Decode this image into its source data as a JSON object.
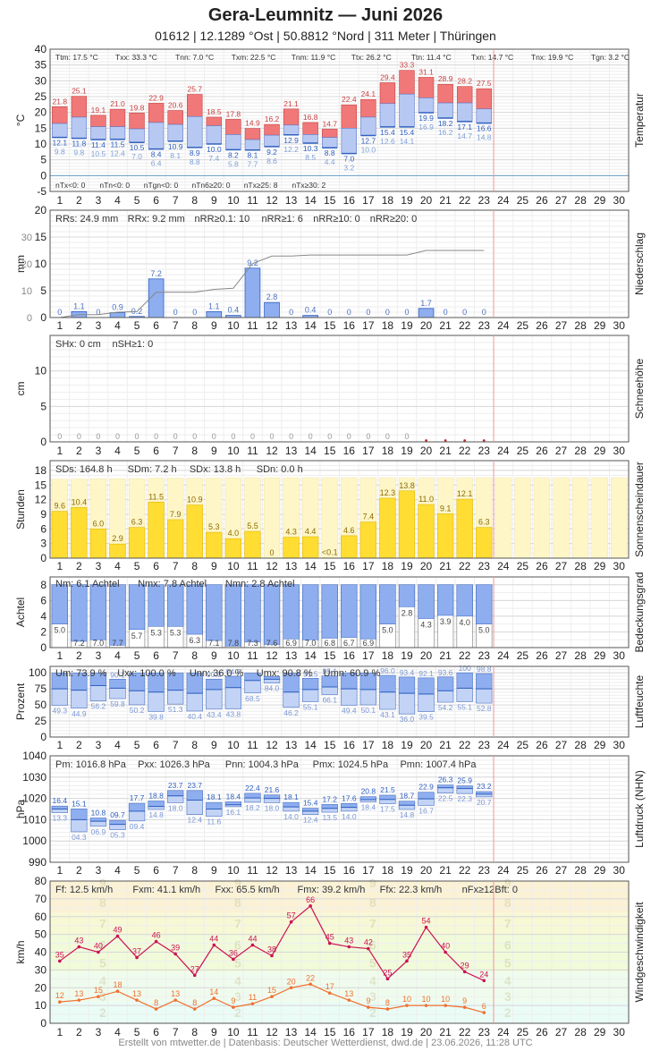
{
  "header": {
    "title": "Gera-Leumnitz  —  Juni 2026",
    "subtitle": "01612  |  12.1289 °Ost  |  50.8812 °Nord  |  311 Meter  |  Thüringen"
  },
  "footer": "Erstellt von mtwetter.de | Datenbasis: Deutscher Wetterdienst, dwd.de | 23.06.2026, 11:28 UTC",
  "days": [
    "1",
    "2",
    "3",
    "4",
    "5",
    "6",
    "7",
    "8",
    "9",
    "10",
    "11",
    "12",
    "13",
    "14",
    "15",
    "16",
    "17",
    "18",
    "19",
    "20",
    "21",
    "22",
    "23",
    "24",
    "25",
    "26",
    "27",
    "28",
    "29",
    "30"
  ],
  "colors": {
    "tmax_bar": "#f07878",
    "tmax_bar_border": "#c84040",
    "tmin_bar": "#b7c9f2",
    "tmin_bar_border": "#5a78c8",
    "precip_bar": "#8eaef0",
    "sunshine_bar": "#ffdd33",
    "sunshine_bg": "#fff6c8",
    "cloud_bar": "#8eaef0",
    "gust_line": "#cc1155",
    "wind_line": "#f07030",
    "today_line": "#ee9999"
  },
  "chart_data": [
    {
      "type": "bar",
      "name": "temperature",
      "ylabel": "°C",
      "right_label": "Temperatur",
      "ylim": [
        -5,
        40
      ],
      "yticks": [
        "-5",
        "0",
        "5",
        "10",
        "15",
        "20",
        "25",
        "30",
        "35",
        "40"
      ],
      "grid": true,
      "stats_top": [
        "Ttm: 17.5 °C",
        "Txx: 33.3 °C",
        "Tnn: 7.0 °C",
        "Txm: 22.5 °C",
        "Tnm: 11.9 °C",
        "Ttx: 26.2 °C",
        "Ttn: 11.4 °C",
        "Txn: 14.7 °C",
        "Tnx: 19.9 °C",
        "Tgn: 3.2 °C"
      ],
      "stats_bottom": [
        "nTx<0: 0",
        "nTn<0: 0",
        "nTgn<0: 0",
        "nTn6≥20: 0",
        "nTx≥25: 8",
        "nTx≥30: 2"
      ],
      "tmax": [
        21.8,
        25.1,
        19.1,
        21.0,
        19.8,
        22.9,
        20.6,
        25.7,
        18.5,
        17.8,
        14.9,
        16.2,
        21.1,
        16.8,
        14.7,
        22.4,
        24.1,
        29.4,
        33.3,
        31.1,
        28.9,
        28.2,
        27.5
      ],
      "tmean": [
        16.5,
        18.5,
        15.5,
        15.5,
        14.8,
        16.8,
        16.2,
        18.7,
        15.8,
        13.0,
        11.4,
        12.8,
        16.0,
        13.0,
        12.1,
        15.0,
        18.5,
        22.8,
        25.8,
        24.6,
        23.0,
        23.0,
        21.1
      ],
      "tmin": [
        12.1,
        11.8,
        11.4,
        11.5,
        10.5,
        8.4,
        10.9,
        8.9,
        10.0,
        8.2,
        8.1,
        9.2,
        12.9,
        10.3,
        8.8,
        7.0,
        12.7,
        15.4,
        15.4,
        19.9,
        18.2,
        17.1,
        16.6
      ],
      "tground": [
        9.8,
        9.8,
        10.5,
        12.4,
        7.0,
        6.4,
        8.1,
        8.8,
        7.4,
        5.8,
        7.7,
        8.6,
        12.2,
        8.5,
        4.4,
        3.2,
        10.0,
        12.6,
        14.1,
        16.9,
        16.2,
        14.7,
        14.8
      ]
    },
    {
      "type": "bar",
      "name": "precipitation",
      "ylabel": "mm",
      "right_label": "Niederschlag",
      "ylim": [
        0,
        20
      ],
      "yticks": [
        "0",
        "5",
        "10",
        "15",
        "20"
      ],
      "y2ticks": [
        "0",
        "10",
        "20",
        "30"
      ],
      "stats": [
        "RRs: 24.9 mm",
        "RRx: 9.2 mm",
        "nRR≥0.1: 10",
        "nRR≥1: 6",
        "nRR≥10: 0",
        "nRR≥20: 0"
      ],
      "values": [
        0,
        1.1,
        0,
        0.9,
        0.2,
        7.2,
        0,
        0,
        1.1,
        0.4,
        9.2,
        2.8,
        0,
        0.4,
        0,
        0,
        0,
        0,
        0,
        1.7,
        0,
        0,
        0
      ],
      "labels": [
        "0",
        "1.1",
        "0",
        "0.9",
        "0.2",
        "7.2",
        "0",
        "0",
        "1.1",
        "0.4",
        "9.2",
        "2.8",
        "0",
        "0.4",
        "0",
        "0",
        "0",
        "0",
        "0",
        "1.7",
        "0",
        "0",
        "0"
      ],
      "cumulative": [
        0,
        1.1,
        1.1,
        2.0,
        2.2,
        9.4,
        9.4,
        9.4,
        10.5,
        10.9,
        20.1,
        22.9,
        22.9,
        23.3,
        23.3,
        23.3,
        23.3,
        23.3,
        23.3,
        25.0,
        25.0,
        25.0,
        25.0
      ]
    },
    {
      "type": "bar",
      "name": "snow",
      "ylabel": "cm",
      "right_label": "Schneehöhe",
      "ylim": [
        0,
        15
      ],
      "yticks": [
        "0",
        "5",
        "10"
      ],
      "stats": [
        "SHx: 0 cm",
        "nSH≥1: 0"
      ],
      "values": [
        0,
        0,
        0,
        0,
        0,
        0,
        0,
        0,
        0,
        0,
        0,
        0,
        0,
        0,
        0,
        0,
        0,
        0,
        0
      ],
      "labels": [
        "0",
        "0",
        "0",
        "0",
        "0",
        "0",
        "0",
        "0",
        "0",
        "0",
        "0",
        "0",
        "0",
        "0",
        "0",
        "0",
        "0",
        "0",
        "0"
      ],
      "missing_days": [
        20,
        21,
        22,
        23
      ]
    },
    {
      "type": "bar",
      "name": "sunshine",
      "ylabel": "Stunden",
      "right_label": "Sonnenscheindauer",
      "ylim": [
        0,
        20
      ],
      "yticks": [
        "0",
        "3",
        "6",
        "9",
        "12",
        "15",
        "18"
      ],
      "stats": [
        "SDs: 164.8 h",
        "SDm: 7.2 h",
        "SDx: 13.8 h",
        "SDn: 0.0 h"
      ],
      "possible": [
        16.2,
        16.2,
        16.3,
        16.3,
        16.3,
        16.4,
        16.4,
        16.4,
        16.4,
        16.5,
        16.5,
        16.5,
        16.5,
        16.5,
        16.5,
        16.5,
        16.5,
        16.5,
        16.5,
        16.5,
        16.5,
        16.5,
        16.5,
        16.5,
        16.5,
        16.5,
        16.5,
        16.5,
        16.5,
        16.5
      ],
      "values": [
        9.6,
        10.4,
        6.0,
        2.9,
        6.3,
        11.5,
        7.9,
        10.9,
        5.3,
        4.0,
        5.5,
        0,
        4.3,
        4.4,
        0.05,
        4.6,
        7.4,
        12.3,
        13.8,
        11.0,
        9.1,
        12.1,
        6.3
      ],
      "labels": [
        "9.6",
        "10.4",
        "6.0",
        "2.9",
        "6.3",
        "11.5",
        "7.9",
        "10.9",
        "5.3",
        "4.0",
        "5.5",
        "0",
        "4.3",
        "4.4",
        "<0.1",
        "4.6",
        "7.4",
        "12.3",
        "13.8",
        "11.0",
        "9.1",
        "12.1",
        "6.3"
      ]
    },
    {
      "type": "bar",
      "name": "cloud_cover",
      "ylabel": "Achtel",
      "right_label": "Bedeckungsgrad",
      "ylim": [
        0,
        9
      ],
      "yticks": [
        "0",
        "2",
        "4",
        "6",
        "8"
      ],
      "stats": [
        "Nm: 6.1 Achtel",
        "Nmx: 7.8 Achtel",
        "Nmn: 2.8 Achtel"
      ],
      "values": [
        5.0,
        7.2,
        7.0,
        7.7,
        5.7,
        5.3,
        5.3,
        6.3,
        7.1,
        7.8,
        7.3,
        7.6,
        6.9,
        7.0,
        6.8,
        6.7,
        6.9,
        5.0,
        2.8,
        4.3,
        3.9,
        4.0,
        5.0
      ]
    },
    {
      "type": "bar",
      "name": "humidity",
      "ylabel": "Prozent",
      "right_label": "Luftfeuchte",
      "ylim": [
        0,
        110
      ],
      "yticks": [
        "0",
        "25",
        "50",
        "75",
        "100"
      ],
      "stats": [
        "Um: 73.9 %",
        "Uxx: 100.0 %",
        "Unn: 36.0 %",
        "Umx: 90.8 %",
        "Umn: 60.9 %"
      ],
      "max": [
        99.5,
        99.5,
        99.5,
        90.1,
        99.5,
        99.5,
        99.5,
        99.5,
        90.2,
        94.7,
        99.5,
        94.5,
        99.5,
        91.5,
        95.1,
        99.5,
        99.5,
        96.0,
        93.4,
        92.1,
        93.6,
        100,
        98.8
      ],
      "max_labels": [
        "",
        "",
        "",
        "90.1",
        "",
        "",
        "",
        "",
        "90.2",
        "94.7",
        "",
        "",
        "",
        "91.5",
        "95.1",
        "",
        "",
        "96.0",
        "93.4",
        "92.1",
        "93.6",
        "100",
        "98.8"
      ],
      "mean": [
        75,
        73,
        80,
        76,
        72,
        70,
        73,
        68,
        74,
        77,
        88,
        90,
        70,
        74,
        78,
        75,
        74,
        70,
        68,
        67,
        72,
        76,
        75
      ],
      "min": [
        49.3,
        44.9,
        56.2,
        59.8,
        50.2,
        39.8,
        51.3,
        40.4,
        43.4,
        43.8,
        68.5,
        84.0,
        46.2,
        55.1,
        66.1,
        49.4,
        50.1,
        43.1,
        36.0,
        39.5,
        54.2,
        55.1,
        52.8
      ]
    },
    {
      "type": "bar",
      "name": "pressure",
      "ylabel": "hPa",
      "right_label": "Luftdruck (NHN)",
      "ylim": [
        990,
        1040
      ],
      "yticks": [
        "990",
        "1000",
        "1010",
        "1020",
        "1030",
        "1040"
      ],
      "stats": [
        "Pm: 1016.8 hPa",
        "Pxx: 1026.3 hPa",
        "Pnn: 1004.3 hPa",
        "Pmx: 1024.5 hPa",
        "Pmn: 1007.4 hPa"
      ],
      "max": [
        1016.4,
        1015.1,
        1010.8,
        1009.7,
        1017.7,
        1018.8,
        1023.7,
        1023.7,
        1018.1,
        1018.4,
        1022.4,
        1021.6,
        1018.1,
        1015.4,
        1017.2,
        1017.6,
        1020.8,
        1021.5,
        1018.7,
        1022.9,
        1026.3,
        1025.9,
        1023.2
      ],
      "mean": [
        1015.0,
        1010.0,
        1009.3,
        1007.8,
        1014.0,
        1016.2,
        1021.2,
        1019.2,
        1015.0,
        1017.0,
        1020.2,
        1020.0,
        1016.0,
        1014.0,
        1015.3,
        1015.8,
        1019.4,
        1019.5,
        1016.8,
        1019.8,
        1025.0,
        1024.6,
        1022.0
      ],
      "min": [
        1013.3,
        1004.3,
        1006.9,
        1005.3,
        1009.4,
        1014.8,
        1018.0,
        1012.4,
        1011.6,
        1016.1,
        1018.2,
        1018.0,
        1014.0,
        1012.4,
        1013.5,
        1014.0,
        1018.4,
        1017.5,
        1014.8,
        1016.7,
        1022.5,
        1022.3,
        1020.7
      ],
      "max_labels": [
        "16.4",
        "15.1",
        "10.8",
        "09.7",
        "17.7",
        "18.8",
        "23.7",
        "23.7",
        "18.1",
        "18.4",
        "22.4",
        "21.6",
        "18.1",
        "15.4",
        "17.2",
        "17.6",
        "20.8",
        "21.5",
        "18.7",
        "22.9",
        "26.3",
        "25.9",
        "23.2"
      ],
      "min_labels": [
        "13.3",
        "04.3",
        "06.9",
        "05.3",
        "09.4",
        "14.8",
        "18.0",
        "12.4",
        "11.6",
        "16.1",
        "18.2",
        "18.0",
        "14.0",
        "12.4",
        "13.5",
        "14.0",
        "18.4",
        "17.5",
        "14.8",
        "16.7",
        "22.5",
        "22.3",
        "20.7"
      ]
    },
    {
      "type": "line",
      "name": "wind",
      "ylabel": "km/h",
      "right_label": "Windgeschwindigkeit",
      "ylim": [
        0,
        80
      ],
      "yticks": [
        "0",
        "10",
        "20",
        "30",
        "40",
        "50",
        "60",
        "70",
        "80"
      ],
      "stats": [
        "Ff: 12.5 km/h",
        "Fxm: 41.1 km/h",
        "Fxx: 65.5 km/h",
        "Fmx: 39.2 km/h",
        "Ffx: 22.3 km/h",
        "nFx≥12Bft: 0"
      ],
      "series": [
        {
          "values": [
            35,
            43,
            40,
            49,
            37,
            46,
            39,
            27,
            44,
            36,
            44,
            38,
            57,
            66,
            45,
            43,
            42,
            25,
            35,
            54,
            40,
            29,
            24
          ]
        },
        {
          "values": [
            12,
            13,
            15,
            18,
            13,
            8,
            13,
            8,
            14,
            9,
            11,
            15,
            20,
            22,
            17,
            13,
            9,
            8,
            10,
            10,
            10,
            9,
            6
          ]
        }
      ],
      "beaufort_bands": [
        {
          "from": 0,
          "to": 12,
          "color": "#eafcf6"
        },
        {
          "from": 12,
          "to": 29,
          "color": "#effced"
        },
        {
          "from": 29,
          "to": 50,
          "color": "#f1fad9"
        },
        {
          "from": 50,
          "to": 62,
          "color": "#f7f8d4"
        },
        {
          "from": 62,
          "to": 80,
          "color": "#fbf2d6"
        }
      ],
      "beaufort_labels": [
        {
          "bft": "2",
          "at": 6
        },
        {
          "bft": "3",
          "at": 15
        },
        {
          "bft": "4",
          "at": 24
        },
        {
          "bft": "5",
          "at": 34
        },
        {
          "bft": "6",
          "at": 44
        },
        {
          "bft": "7",
          "at": 56
        },
        {
          "bft": "8",
          "at": 68
        },
        {
          "bft": "9",
          "at": 79
        }
      ]
    }
  ]
}
